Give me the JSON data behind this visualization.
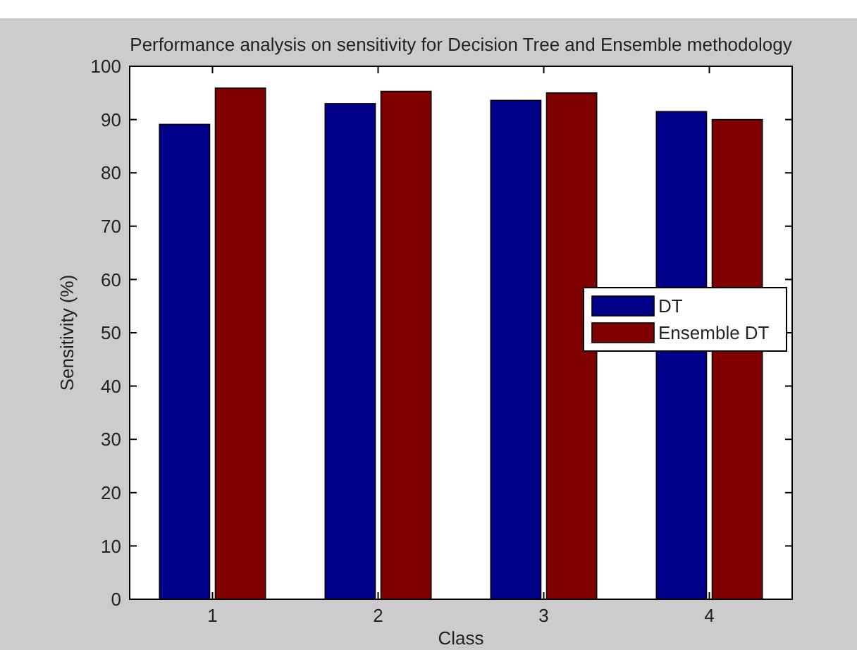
{
  "chart_data": {
    "type": "bar",
    "title": "Performance analysis on sensitivity for Decision Tree and Ensemble methodology",
    "xlabel": "Class",
    "ylabel": "Sensitivity (%)",
    "categories": [
      "1",
      "2",
      "3",
      "4"
    ],
    "series": [
      {
        "name": "DT",
        "color": "#00008b",
        "values": [
          89.1,
          93.0,
          93.6,
          91.5
        ]
      },
      {
        "name": "Ensemble DT",
        "color": "#800000",
        "values": [
          95.9,
          95.3,
          95.0,
          90.0
        ]
      }
    ],
    "ylim": [
      0,
      100
    ],
    "yticks": [
      0,
      10,
      20,
      30,
      40,
      50,
      60,
      70,
      80,
      90,
      100
    ],
    "legend": "right",
    "grid": false
  }
}
